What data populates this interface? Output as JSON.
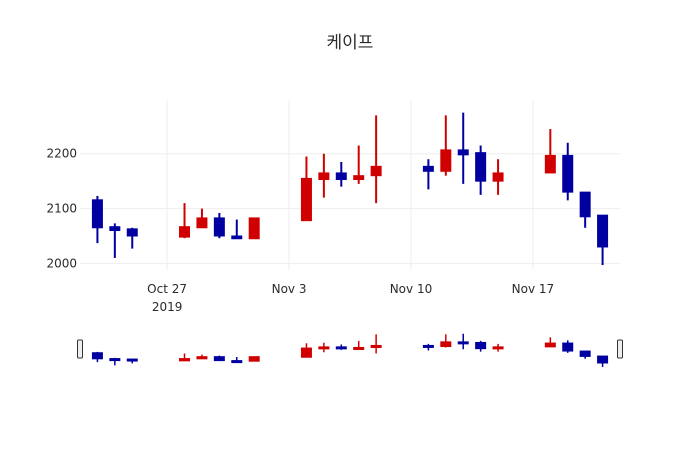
{
  "chart_data": {
    "type": "candlestick",
    "title": "케이프",
    "xlabel": "",
    "ylabel": "",
    "ylim": [
      1988,
      2298
    ],
    "y_ticks": [
      2000,
      2100,
      2200
    ],
    "x_ticks": [
      {
        "date": "2019-10-27",
        "label": "Oct 27",
        "sublabel": "2019"
      },
      {
        "date": "2019-11-03",
        "label": "Nov 3",
        "sublabel": ""
      },
      {
        "date": "2019-11-10",
        "label": "Nov 10",
        "sublabel": ""
      },
      {
        "date": "2019-11-17",
        "label": "Nov 17",
        "sublabel": ""
      }
    ],
    "xlim": [
      "2019-10-22",
      "2019-11-22"
    ],
    "grid": true,
    "rangeslider": true,
    "increasing_color": "#d10000",
    "decreasing_color": "#0000a0",
    "candles": [
      {
        "date": "2019-10-23",
        "open": 2116,
        "high": 2123,
        "low": 2037,
        "close": 2065
      },
      {
        "date": "2019-10-24",
        "open": 2067,
        "high": 2073,
        "low": 2010,
        "close": 2060
      },
      {
        "date": "2019-10-25",
        "open": 2063,
        "high": 2065,
        "low": 2027,
        "close": 2050
      },
      {
        "date": "2019-10-28",
        "open": 2048,
        "high": 2110,
        "low": 2046,
        "close": 2067
      },
      {
        "date": "2019-10-29",
        "open": 2065,
        "high": 2100,
        "low": 2065,
        "close": 2083
      },
      {
        "date": "2019-10-30",
        "open": 2083,
        "high": 2092,
        "low": 2046,
        "close": 2050
      },
      {
        "date": "2019-10-31",
        "open": 2050,
        "high": 2080,
        "low": 2045,
        "close": 2045
      },
      {
        "date": "2019-11-01",
        "open": 2045,
        "high": 2083,
        "low": 2045,
        "close": 2083
      },
      {
        "date": "2019-11-04",
        "open": 2078,
        "high": 2195,
        "low": 2078,
        "close": 2155
      },
      {
        "date": "2019-11-05",
        "open": 2153,
        "high": 2200,
        "low": 2120,
        "close": 2165
      },
      {
        "date": "2019-11-06",
        "open": 2165,
        "high": 2185,
        "low": 2140,
        "close": 2153
      },
      {
        "date": "2019-11-07",
        "open": 2153,
        "high": 2215,
        "low": 2145,
        "close": 2160
      },
      {
        "date": "2019-11-08",
        "open": 2160,
        "high": 2270,
        "low": 2110,
        "close": 2177
      },
      {
        "date": "2019-11-11",
        "open": 2177,
        "high": 2190,
        "low": 2135,
        "close": 2168
      },
      {
        "date": "2019-11-12",
        "open": 2168,
        "high": 2270,
        "low": 2160,
        "close": 2207
      },
      {
        "date": "2019-11-13",
        "open": 2207,
        "high": 2275,
        "low": 2145,
        "close": 2198
      },
      {
        "date": "2019-11-14",
        "open": 2202,
        "high": 2215,
        "low": 2125,
        "close": 2150
      },
      {
        "date": "2019-11-15",
        "open": 2150,
        "high": 2190,
        "low": 2125,
        "close": 2165
      },
      {
        "date": "2019-11-18",
        "open": 2165,
        "high": 2245,
        "low": 2165,
        "close": 2197
      },
      {
        "date": "2019-11-19",
        "open": 2197,
        "high": 2220,
        "low": 2115,
        "close": 2130
      },
      {
        "date": "2019-11-20",
        "open": 2130,
        "high": 2130,
        "low": 2065,
        "close": 2085
      },
      {
        "date": "2019-11-21",
        "open": 2088,
        "high": 2088,
        "low": 1997,
        "close": 2030
      }
    ]
  }
}
